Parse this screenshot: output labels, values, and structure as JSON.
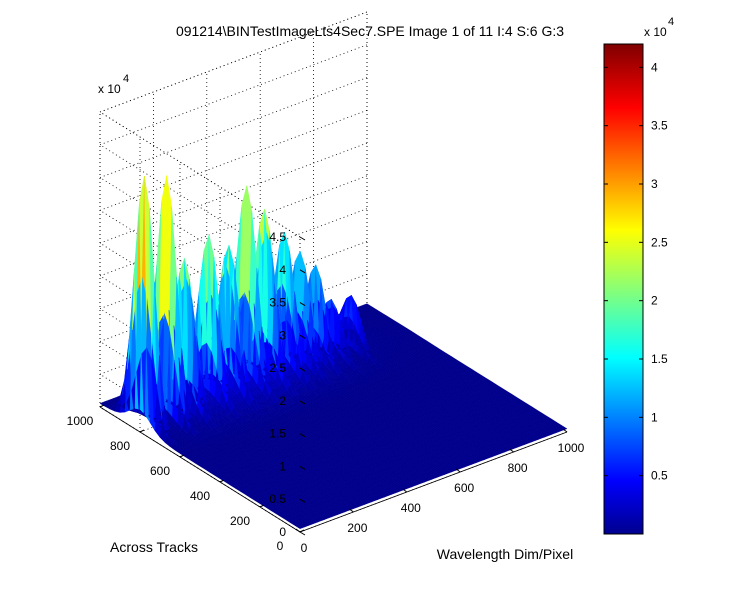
{
  "chart_data": {
    "type": "surface3d",
    "title": "091214\\BINTestImageLts4Sec7.SPE  Image 1 of 11  I:4  S:6  G:3",
    "xlabel": "Wavelength Dim/Pixel",
    "ylabel": "Across Tracks",
    "zlabel": "",
    "xlim": [
      0,
      1000
    ],
    "ylim": [
      0,
      1000
    ],
    "zlim": [
      0,
      45000
    ],
    "z_multiplier_label": "x 10",
    "z_multiplier_exp": "4",
    "x_ticks": [
      "0",
      "200",
      "400",
      "600",
      "800",
      "1000"
    ],
    "y_ticks": [
      "0",
      "200",
      "400",
      "600",
      "800",
      "1000"
    ],
    "z_ticks": [
      "0",
      "0.5",
      "1",
      "1.5",
      "2",
      "2.5",
      "3",
      "3.5",
      "4",
      "4.5"
    ],
    "grid": true,
    "colormap": "jet",
    "colorbar": {
      "range": [
        0,
        42000
      ],
      "multiplier_label": "x 10",
      "multiplier_exp": "4",
      "ticks": [
        "0.5",
        "1",
        "1.5",
        "2",
        "2.5",
        "3",
        "3.5",
        "4"
      ],
      "tick_values": [
        5000,
        10000,
        15000,
        20000,
        25000,
        30000,
        35000,
        40000
      ]
    },
    "peaks": [
      {
        "x": 15,
        "y": 800,
        "z": 39000
      },
      {
        "x": 100,
        "y": 800,
        "z": 36000
      },
      {
        "x": 170,
        "y": 800,
        "z": 25000
      },
      {
        "x": 260,
        "y": 800,
        "z": 24000
      },
      {
        "x": 330,
        "y": 800,
        "z": 23000
      },
      {
        "x": 400,
        "y": 800,
        "z": 28000
      },
      {
        "x": 470,
        "y": 800,
        "z": 27000
      },
      {
        "x": 540,
        "y": 800,
        "z": 20000
      },
      {
        "x": 600,
        "y": 800,
        "z": 16000
      },
      {
        "x": 660,
        "y": 800,
        "z": 14000
      },
      {
        "x": 720,
        "y": 800,
        "z": 9000
      },
      {
        "x": 790,
        "y": 800,
        "z": 8000
      }
    ]
  },
  "colors": {
    "background": "#ffffff",
    "axis": "#000000",
    "grid": "#000000"
  }
}
